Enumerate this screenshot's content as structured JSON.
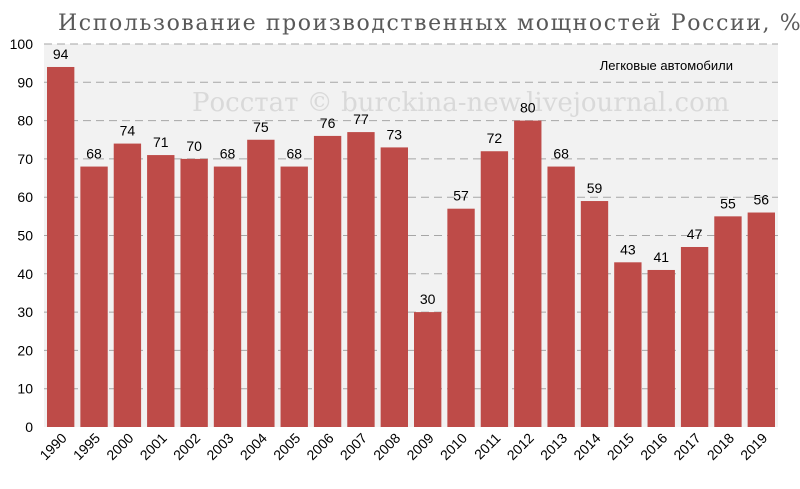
{
  "chart_data": {
    "type": "bar",
    "title": "Использование производственных мощностей России, %",
    "series_label": "Легковые автомобили",
    "watermark": "Росстат © burckina-new.livejournal.com",
    "categories": [
      "1990",
      "1995",
      "2000",
      "2001",
      "2002",
      "2003",
      "2004",
      "2005",
      "2006",
      "2007",
      "2008",
      "2009",
      "2010",
      "2011",
      "2012",
      "2013",
      "2014",
      "2015",
      "2016",
      "2017",
      "2018",
      "2019"
    ],
    "values": [
      94,
      68,
      74,
      71,
      70,
      68,
      75,
      68,
      76,
      77,
      73,
      30,
      57,
      72,
      80,
      68,
      59,
      43,
      41,
      47,
      55,
      56
    ],
    "ylim": [
      0,
      100
    ],
    "yticks": [
      0,
      10,
      20,
      30,
      40,
      50,
      60,
      70,
      80,
      90,
      100
    ],
    "grid": true,
    "colors": {
      "bar": "#be4b48",
      "plot_bg": "#f2f2f2",
      "grid": "#a6a6a6"
    }
  }
}
